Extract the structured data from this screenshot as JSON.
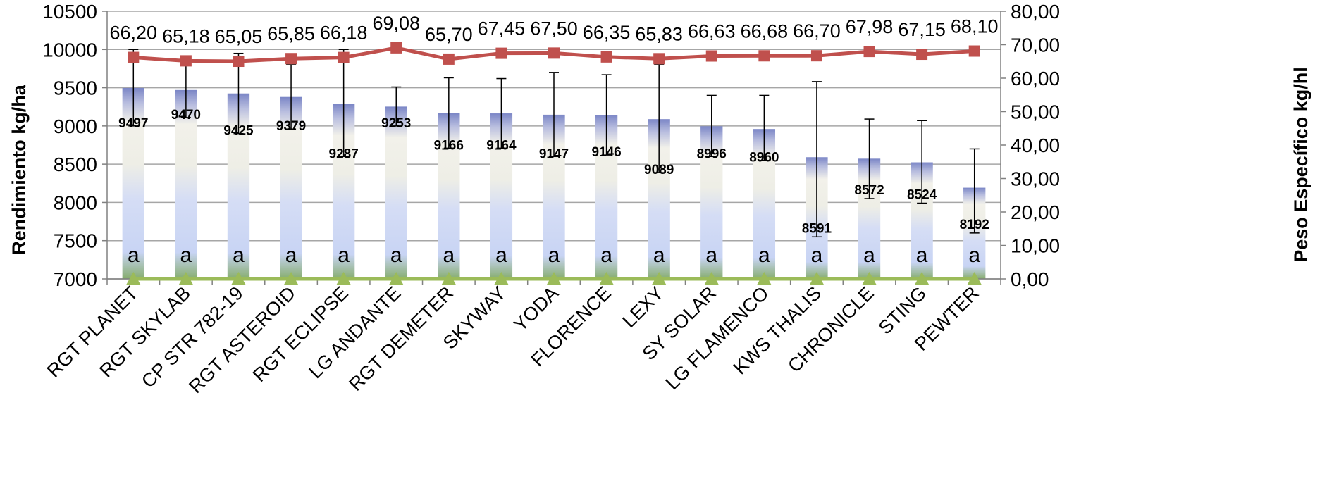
{
  "chart_data": {
    "type": "bar",
    "categories": [
      "RGT PLANET",
      "RGT SKYLAB",
      "CP STR 782-19",
      "RGT ASTEROID",
      "RGT ECLIPSE",
      "LG ANDANTE",
      "RGT DEMETER",
      "SKYWAY",
      "YODA",
      "FLORENCE",
      "LEXY",
      "SY SOLAR",
      "LG FLAMENCO",
      "KWS THALIS",
      "CHRONICLE",
      "STING",
      "PEWTER"
    ],
    "ylabel": "Rendimiento  kg/ha",
    "y2label": "Peso Específico kg/hl",
    "ylim": [
      7000,
      10500
    ],
    "y2lim": [
      0,
      80
    ],
    "yticks": [
      "7000",
      "7500",
      "8000",
      "8500",
      "9000",
      "9500",
      "10000",
      "10500"
    ],
    "y2ticks": [
      "0,00",
      "10,00",
      "20,00",
      "30,00",
      "40,00",
      "50,00",
      "60,00",
      "70,00",
      "80,00"
    ],
    "grid": true,
    "series": [
      {
        "type": "bar",
        "axis": "left",
        "values": [
          9497,
          9470,
          9425,
          9379,
          9287,
          9253,
          9166,
          9164,
          9147,
          9146,
          9089,
          8996,
          8960,
          8591,
          8572,
          8524,
          8192
        ],
        "labels": [
          "9497",
          "9470",
          "9425",
          "9379",
          "9287",
          "9253",
          "9166",
          "9164",
          "9147",
          "9146",
          "9089",
          "8996",
          "8960",
          "8591",
          "8572",
          "8524",
          "8192"
        ],
        "error_low": [
          9000,
          9110,
          8900,
          8960,
          8600,
          9000,
          8710,
          8710,
          8600,
          8620,
          8390,
          8600,
          8550,
          7550,
          8050,
          7990,
          7600
        ],
        "error_high": [
          10000,
          9830,
          9950,
          9800,
          10000,
          9510,
          9630,
          9620,
          9700,
          9670,
          9800,
          9400,
          9400,
          9580,
          9090,
          9070,
          8700
        ],
        "group_letters": [
          "a",
          "a",
          "a",
          "a",
          "a",
          "a",
          "a",
          "a",
          "a",
          "a",
          "a",
          "a",
          "a",
          "a",
          "a",
          "a",
          "a"
        ]
      },
      {
        "type": "line",
        "axis": "right",
        "marker": "square",
        "color": "#c0504d",
        "values": [
          66.2,
          65.18,
          65.05,
          65.85,
          66.18,
          69.08,
          65.7,
          67.45,
          67.5,
          66.35,
          65.83,
          66.63,
          66.68,
          66.7,
          67.98,
          67.15,
          68.1
        ],
        "labels": [
          "66,20",
          "65,18",
          "65,05",
          "65,85",
          "66,18",
          "69,08",
          "65,70",
          "67,45",
          "67,50",
          "66,35",
          "65,83",
          "66,63",
          "66,68",
          "66,70",
          "67,98",
          "67,15",
          "68,10"
        ]
      },
      {
        "type": "line",
        "axis": "right",
        "marker": "triangle",
        "color": "#9bbb59",
        "values": [
          0,
          0,
          0,
          0,
          0,
          0,
          0,
          0,
          0,
          0,
          0,
          0,
          0,
          0,
          0,
          0,
          0
        ]
      }
    ],
    "colors": {
      "bar_top": "#7b86c6",
      "bar_mid": "#f2f1ea",
      "bar_low": "#c8d4f4",
      "bar_base": "#86ad6e",
      "line_red": "#c0504d",
      "line_green": "#9bbb59",
      "grid": "#a6a6a6"
    }
  }
}
